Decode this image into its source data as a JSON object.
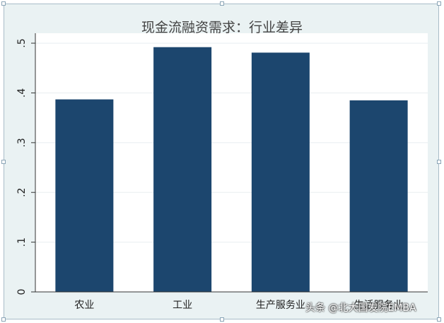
{
  "chart_data": {
    "type": "bar",
    "title": "现金流融资需求：行业差异",
    "categories": [
      "农业",
      "工业",
      "生产服务业",
      "生活服务业"
    ],
    "values": [
      0.387,
      0.492,
      0.481,
      0.385
    ],
    "ylim": [
      0,
      0.52
    ],
    "yticks": [
      0,
      0.1,
      0.2,
      0.3,
      0.4,
      0.5
    ],
    "ytick_labels": [
      "0",
      ".1",
      ".2",
      ".3",
      ".4",
      ".5"
    ],
    "grid": true,
    "bar_color": "#1c466e"
  },
  "watermark": "头条 @北大国发院EMBA"
}
